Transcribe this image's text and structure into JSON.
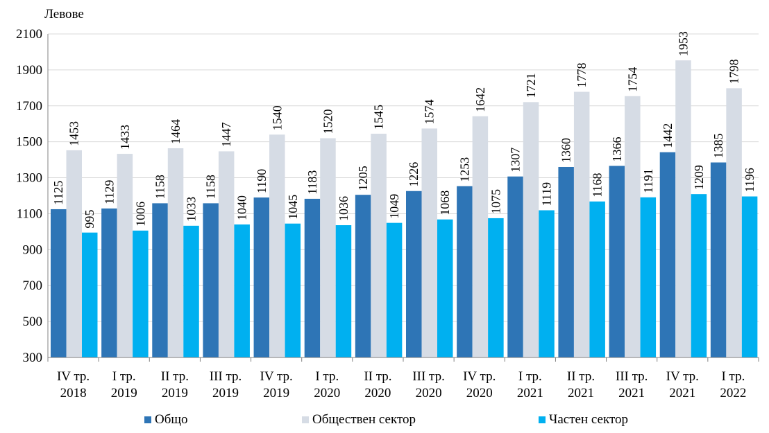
{
  "chart_data": {
    "type": "bar",
    "ylabel": "Левове",
    "ylim": [
      300,
      2100
    ],
    "yticks": [
      300,
      500,
      700,
      900,
      1100,
      1300,
      1500,
      1700,
      1900,
      2100
    ],
    "grid": true,
    "legend_position": "bottom",
    "categories": [
      [
        "IV тр.",
        "2018"
      ],
      [
        "I тр.",
        "2019"
      ],
      [
        "II тр.",
        "2019"
      ],
      [
        "III тр.",
        "2019"
      ],
      [
        "IV тр.",
        "2019"
      ],
      [
        "I тр.",
        "2020"
      ],
      [
        "II тр.",
        "2020"
      ],
      [
        "III тр.",
        "2020"
      ],
      [
        "IV тр.",
        "2020"
      ],
      [
        "I тр.",
        "2021"
      ],
      [
        "II тр.",
        "2021"
      ],
      [
        "III тр.",
        "2021"
      ],
      [
        "IV тр.",
        "2021"
      ],
      [
        "I тр.",
        "2022"
      ]
    ],
    "series": [
      {
        "name": "Общо",
        "color": "#2E75B6",
        "values": [
          1125,
          1129,
          1158,
          1158,
          1190,
          1183,
          1205,
          1226,
          1253,
          1307,
          1360,
          1366,
          1442,
          1385
        ]
      },
      {
        "name": "Обществен сектор",
        "color": "#D6DCE5",
        "values": [
          1453,
          1433,
          1464,
          1447,
          1540,
          1520,
          1545,
          1574,
          1642,
          1721,
          1778,
          1754,
          1953,
          1798
        ]
      },
      {
        "name": "Частен сектор",
        "color": "#00B0F0",
        "values": [
          995,
          1006,
          1033,
          1040,
          1045,
          1036,
          1049,
          1068,
          1075,
          1119,
          1168,
          1191,
          1209,
          1196
        ]
      }
    ]
  }
}
